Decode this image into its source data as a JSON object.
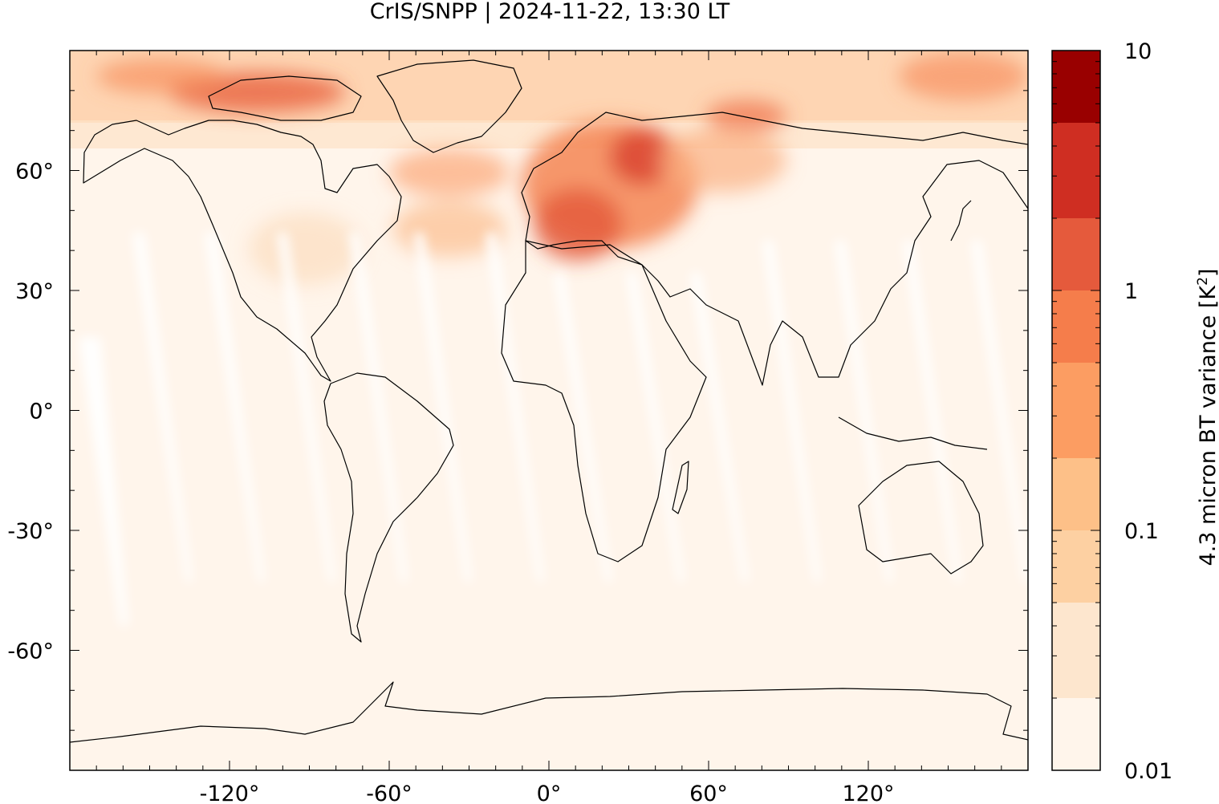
{
  "title": "CrIS/SNPP | 2024-11-22, 13:30 LT",
  "map": {
    "projection": "equirectangular",
    "lon_range": [
      -180,
      180
    ],
    "lat_range": [
      -90,
      90
    ],
    "x_ticks": [
      {
        "value": -120,
        "label": "-120°"
      },
      {
        "value": -60,
        "label": "-60°"
      },
      {
        "value": 0,
        "label": "0°"
      },
      {
        "value": 60,
        "label": "60°"
      },
      {
        "value": 120,
        "label": "120°"
      }
    ],
    "y_ticks": [
      {
        "value": 60,
        "label": "60°"
      },
      {
        "value": 30,
        "label": "30°"
      },
      {
        "value": 0,
        "label": "0°"
      },
      {
        "value": -30,
        "label": "-30°"
      },
      {
        "value": -60,
        "label": "-60°"
      }
    ],
    "background_color": "#fff5eb",
    "coastline_color": "#000000"
  },
  "colorbar": {
    "title": "4.3 micron BT variance [K",
    "title_sup": "2",
    "title_end": "]",
    "scale": "log",
    "range": [
      0.01,
      10
    ],
    "tick_labels": [
      {
        "value": 10,
        "label": "10"
      },
      {
        "value": 1,
        "label": "1"
      },
      {
        "value": 0.1,
        "label": "0.1"
      },
      {
        "value": 0.01,
        "label": "0.01"
      }
    ],
    "levels": [
      {
        "from": 0.01,
        "to": 0.02,
        "color": "#fff5eb"
      },
      {
        "from": 0.02,
        "to": 0.05,
        "color": "#fde6ce"
      },
      {
        "from": 0.05,
        "to": 0.1,
        "color": "#fdd0a2"
      },
      {
        "from": 0.1,
        "to": 0.2,
        "color": "#fdc088"
      },
      {
        "from": 0.2,
        "to": 0.5,
        "color": "#fc9d62"
      },
      {
        "from": 0.5,
        "to": 1,
        "color": "#f57d4b"
      },
      {
        "from": 1,
        "to": 2,
        "color": "#e55a3c"
      },
      {
        "from": 2,
        "to": 5,
        "color": "#cf2e22"
      },
      {
        "from": 5,
        "to": 10,
        "color": "#990000"
      }
    ]
  }
}
